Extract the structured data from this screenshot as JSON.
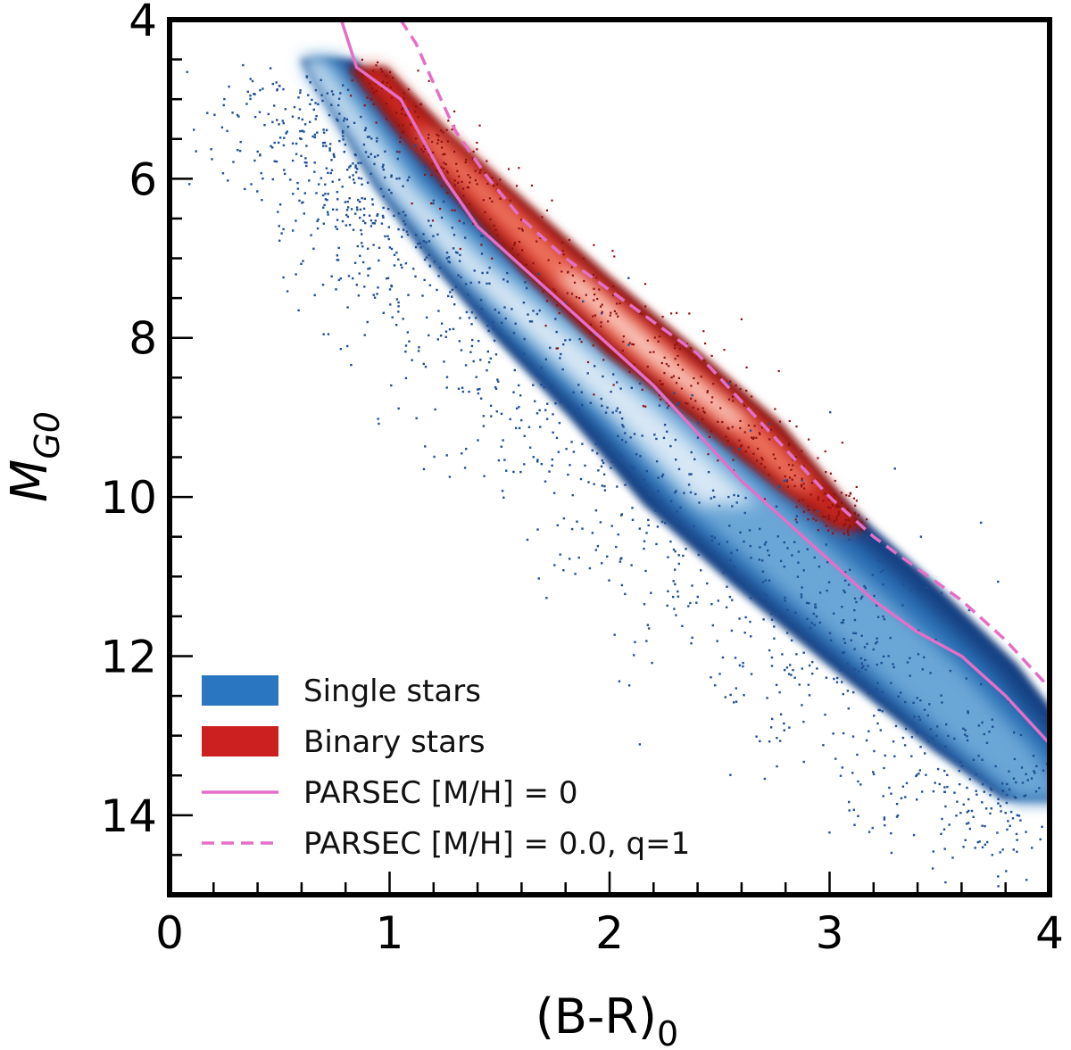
{
  "chart_data": {
    "type": "scatter",
    "title": "",
    "xlabel": "(B-R)",
    "xlabel_sub": "0",
    "ylabel": "M",
    "ylabel_sub": "G0",
    "xlim": [
      0,
      4
    ],
    "ylim": [
      15,
      4
    ],
    "y_inverted": true,
    "grid": false,
    "x_major_ticks": [
      0,
      1,
      2,
      3,
      4
    ],
    "x_tick_labels": [
      "0",
      "1",
      "2",
      "3",
      "4"
    ],
    "y_major_ticks": [
      4,
      6,
      8,
      10,
      12,
      14
    ],
    "y_tick_labels": [
      "4",
      "6",
      "8",
      "10",
      "12",
      "14"
    ],
    "minor_tick_step_x": 0.2,
    "minor_tick_step_y": 0.5,
    "legend_position": "lower-left",
    "series": [
      {
        "name": "Single stars",
        "kind": "density",
        "color": "#2a76c0",
        "ridge": [
          {
            "x": 0.7,
            "y": 4.5,
            "half_width": 0.08
          },
          {
            "x": 0.9,
            "y": 5.3,
            "half_width": 0.1
          },
          {
            "x": 1.1,
            "y": 6.1,
            "half_width": 0.12
          },
          {
            "x": 1.4,
            "y": 7.0,
            "half_width": 0.16
          },
          {
            "x": 1.8,
            "y": 8.0,
            "half_width": 0.22
          },
          {
            "x": 2.2,
            "y": 9.0,
            "half_width": 0.26
          },
          {
            "x": 2.6,
            "y": 10.1,
            "half_width": 0.3
          },
          {
            "x": 3.0,
            "y": 11.1,
            "half_width": 0.3
          },
          {
            "x": 3.4,
            "y": 12.1,
            "half_width": 0.28
          },
          {
            "x": 3.8,
            "y": 13.2,
            "half_width": 0.22
          },
          {
            "x": 4.0,
            "y": 13.8,
            "half_width": 0.15
          }
        ]
      },
      {
        "name": "Binary stars",
        "kind": "density",
        "color": "#cc1f1f",
        "ridge": [
          {
            "x": 0.9,
            "y": 4.6,
            "half_width": 0.06
          },
          {
            "x": 1.15,
            "y": 5.4,
            "half_width": 0.08
          },
          {
            "x": 1.4,
            "y": 6.1,
            "half_width": 0.1
          },
          {
            "x": 1.8,
            "y": 7.2,
            "half_width": 0.13
          },
          {
            "x": 2.2,
            "y": 8.2,
            "half_width": 0.15
          },
          {
            "x": 2.6,
            "y": 9.1,
            "half_width": 0.13
          },
          {
            "x": 2.9,
            "y": 9.9,
            "half_width": 0.09
          },
          {
            "x": 3.1,
            "y": 10.4,
            "half_width": 0.05
          }
        ]
      },
      {
        "name": "PARSEC [M/H] = 0",
        "kind": "line",
        "style": "solid",
        "color": "#e46fc8",
        "x": [
          0.78,
          0.85,
          0.95,
          1.05,
          1.15,
          1.25,
          1.4,
          1.6,
          1.8,
          2.0,
          2.2,
          2.4,
          2.6,
          2.8,
          3.0,
          3.2,
          3.4,
          3.6,
          3.8,
          4.0
        ],
        "y": [
          4.0,
          4.6,
          4.8,
          5.0,
          5.5,
          6.0,
          6.6,
          7.1,
          7.6,
          8.1,
          8.6,
          9.2,
          9.8,
          10.3,
          10.8,
          11.3,
          11.7,
          12.0,
          12.5,
          13.1
        ]
      },
      {
        "name": "PARSEC [M/H] = 0.0, q=1",
        "kind": "line",
        "style": "dashed",
        "color": "#e46fc8",
        "x": [
          1.05,
          1.12,
          1.2,
          1.3,
          1.45,
          1.6,
          1.8,
          2.0,
          2.2,
          2.4,
          2.6,
          2.8,
          3.0,
          3.2,
          3.4,
          3.6,
          3.8,
          4.0
        ],
        "y": [
          4.0,
          4.3,
          4.8,
          5.4,
          6.0,
          6.5,
          7.0,
          7.4,
          7.8,
          8.2,
          8.8,
          9.4,
          10.0,
          10.5,
          10.9,
          11.3,
          11.8,
          12.4
        ]
      }
    ]
  }
}
